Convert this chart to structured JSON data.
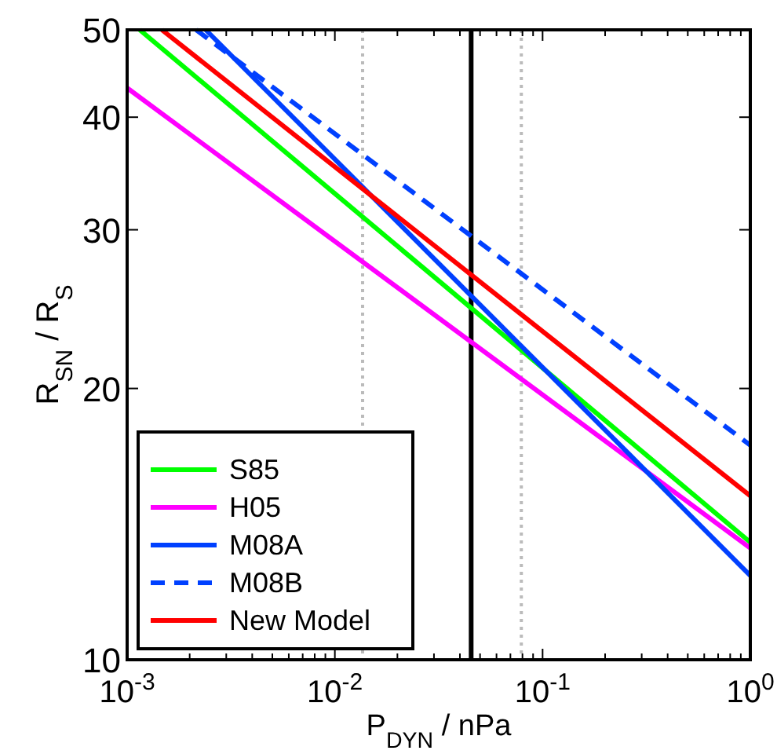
{
  "chart_data": {
    "type": "line",
    "xlabel": "P$_{DYN}$ / nPa",
    "ylabel": "R$_{SN}$ / R$_{S}$",
    "log": "xy",
    "grid": false,
    "legend": "bottom left",
    "xlim": [
      0.001,
      1
    ],
    "ylim": [
      10,
      50
    ],
    "xticks": [
      {
        "value": 0.001,
        "label": "10$^{-3}$"
      },
      {
        "value": 0.002,
        "label": null
      },
      {
        "value": 0.003,
        "label": null
      },
      {
        "value": 0.004,
        "label": null
      },
      {
        "value": 0.005,
        "label": null
      },
      {
        "value": 0.006,
        "label": null
      },
      {
        "value": 0.007,
        "label": null
      },
      {
        "value": 0.008,
        "label": null
      },
      {
        "value": 0.009,
        "label": null
      },
      {
        "value": 0.01,
        "label": "10$^{-2}$"
      },
      {
        "value": 0.02,
        "label": null
      },
      {
        "value": 0.03,
        "label": null
      },
      {
        "value": 0.04,
        "label": null
      },
      {
        "value": 0.05,
        "label": null
      },
      {
        "value": 0.06,
        "label": null
      },
      {
        "value": 0.07,
        "label": null
      },
      {
        "value": 0.08,
        "label": null
      },
      {
        "value": 0.09,
        "label": null
      },
      {
        "value": 0.1,
        "label": "10$^{-1}$"
      },
      {
        "value": 0.2,
        "label": null
      },
      {
        "value": 0.3,
        "label": null
      },
      {
        "value": 0.4,
        "label": null
      },
      {
        "value": 0.5,
        "label": null
      },
      {
        "value": 0.6,
        "label": null
      },
      {
        "value": 0.7,
        "label": null
      },
      {
        "value": 0.8,
        "label": null
      },
      {
        "value": 0.9,
        "label": null
      },
      {
        "value": 1,
        "label": "10$^{0}$"
      }
    ],
    "yticks": [
      10,
      20,
      30,
      40,
      50
    ],
    "ref_lines": [
      {
        "axis": "x",
        "value": 0.0453,
        "color": "#000000",
        "line_style": "solid"
      },
      {
        "axis": "x",
        "value": 0.0136,
        "color": "#bbbbbb",
        "line_style": "dotted"
      },
      {
        "axis": "x",
        "value": 0.079,
        "color": "#bbbbbb",
        "line_style": "dotted"
      }
    ],
    "series": [
      {
        "name": "S85",
        "color": "#00ff00",
        "x": [
          0.00115,
          1
        ],
        "values": [
          50,
          13.5
        ]
      },
      {
        "name": "H05",
        "color": "#ff00ff",
        "x": [
          0.001,
          1
        ],
        "values": [
          43.1,
          13.3
        ]
      },
      {
        "name": "M08A",
        "color": "#0040ff",
        "x": [
          0.00239,
          1
        ],
        "values": [
          50,
          12.4
        ]
      },
      {
        "name": "M08B",
        "color": "#0040ff",
        "x": [
          0.00215,
          1
        ],
        "values": [
          50,
          17.3
        ],
        "line_style": "dashed"
      },
      {
        "name": "New Model",
        "color": "#ff0000",
        "x": [
          0.00147,
          1
        ],
        "values": [
          50,
          15.2
        ]
      }
    ]
  }
}
